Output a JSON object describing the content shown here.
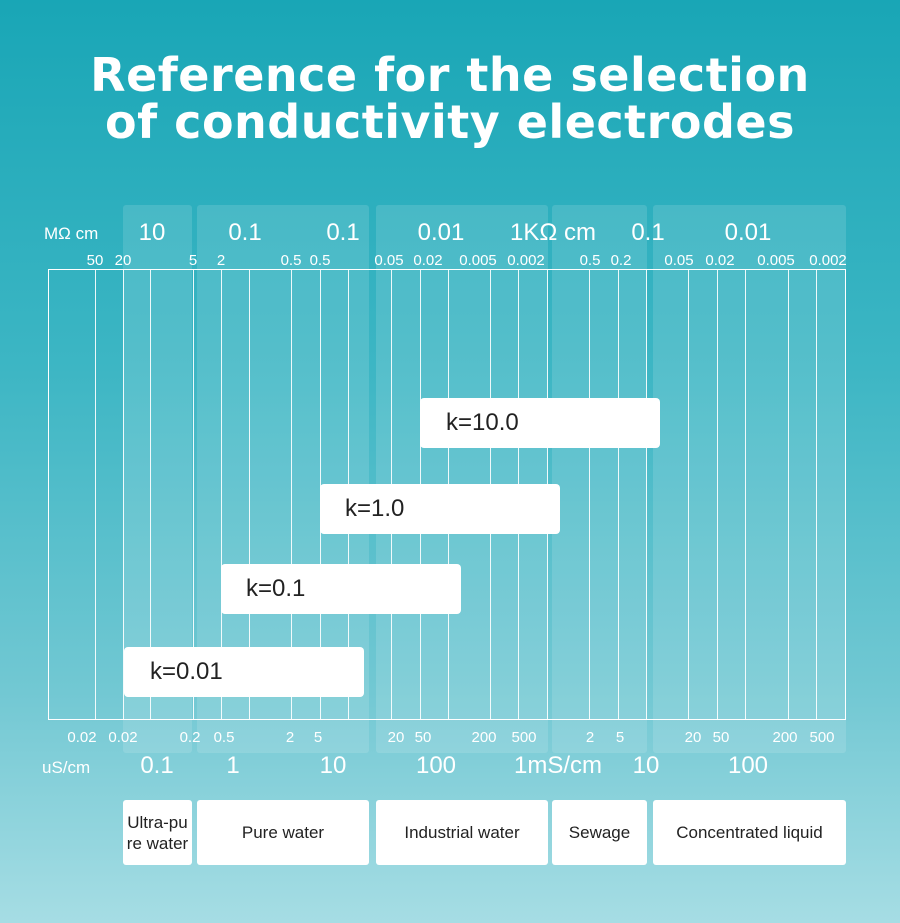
{
  "title": {
    "line1": "Reference for the selection",
    "line2": "of conductivity electrodes"
  },
  "top_axis": {
    "unit1": "MΩ cm",
    "unit2": "1KΩ cm",
    "major_labels": [
      "10",
      "0.1",
      "0.1",
      "0.01",
      "0.1",
      "0.01"
    ],
    "minor_labels": [
      "50",
      "20",
      "5",
      "2",
      "0.5",
      "0.5",
      "0.05",
      "0.02",
      "0.005",
      "0.002",
      "0.5",
      "0.2",
      "0.05",
      "0.02",
      "0.005",
      "0.002"
    ]
  },
  "bottom_axis": {
    "unit1": "uS/cm",
    "unit2": "1mS/cm",
    "minor_labels": [
      "0.02",
      "0.02",
      "0.2",
      "0.5",
      "2",
      "5",
      "20",
      "50",
      "200",
      "500",
      "2",
      "5",
      "20",
      "50",
      "200",
      "500"
    ],
    "major_labels": [
      "0.1",
      "1",
      "10",
      "100",
      "10",
      "100"
    ]
  },
  "electrodes": [
    {
      "label": "k=10.0"
    },
    {
      "label": "k=1.0"
    },
    {
      "label": "k=0.1"
    },
    {
      "label": "k=0.01"
    }
  ],
  "categories": [
    {
      "label": "Ultra-pu\nre water"
    },
    {
      "label": "Pure water"
    },
    {
      "label": "Industrial water"
    },
    {
      "label": "Sewage"
    },
    {
      "label": "Concentrated liquid"
    }
  ]
}
